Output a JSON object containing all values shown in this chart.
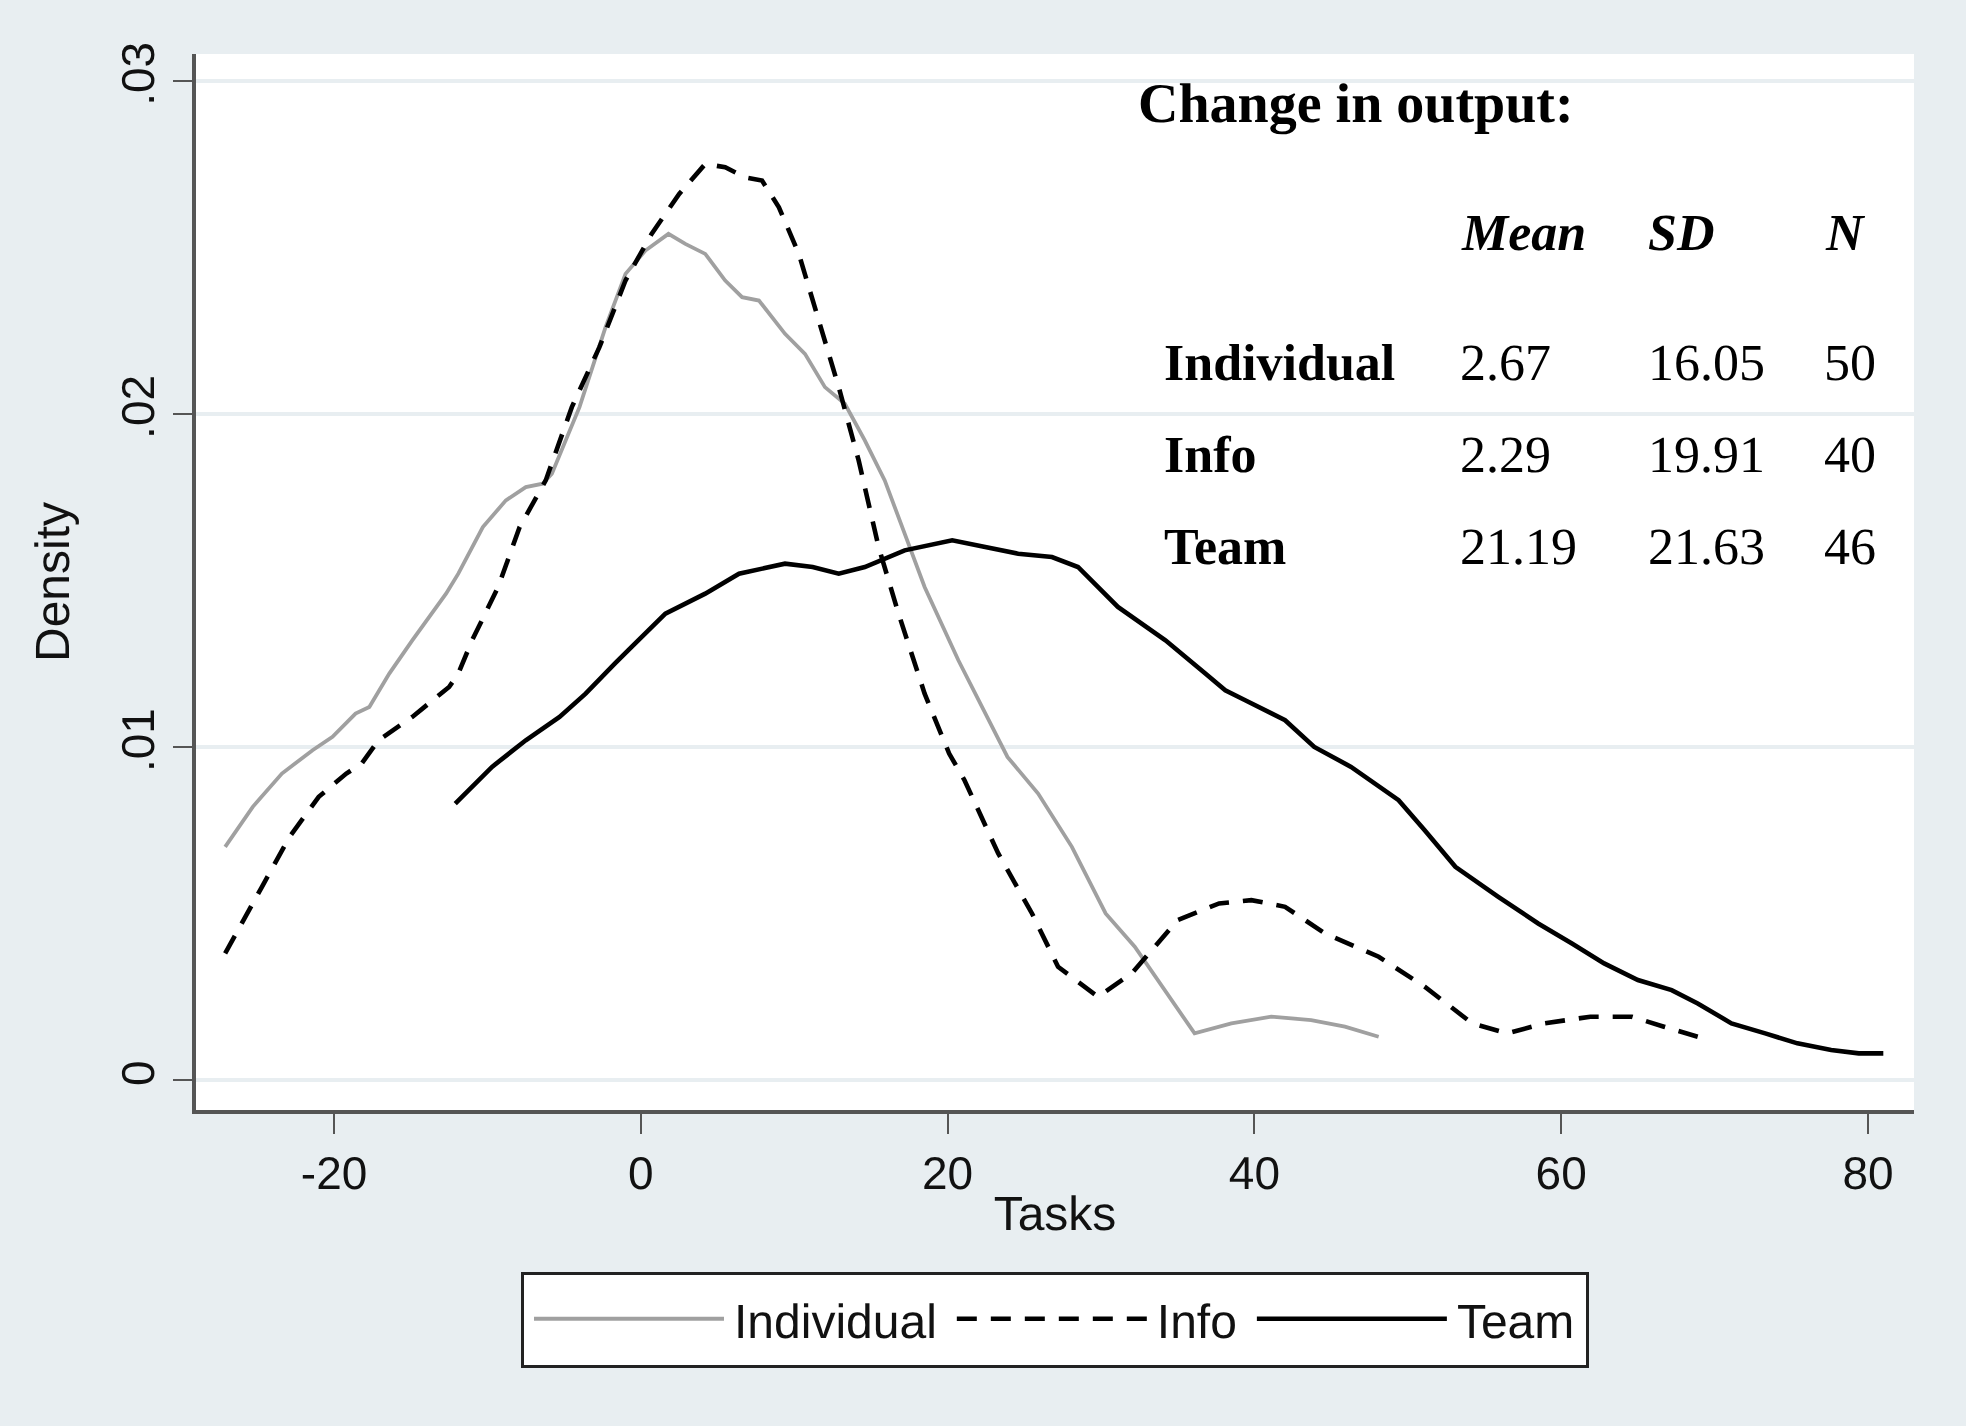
{
  "chart_data": {
    "type": "line",
    "xlabel": "Tasks",
    "ylabel": "Density",
    "annotations": [
      "Change in output:",
      "Mean",
      "SD",
      "N",
      "Individual",
      "2.67",
      "16.05",
      "50",
      "Info",
      "2.29",
      "19.91",
      "40",
      "Team",
      "21.19",
      "21.63",
      "46"
    ],
    "series": [
      {
        "name": "Individual",
        "color": "#a0a0a0",
        "line_style": "solid",
        "x": [
          -27.1,
          -25.3,
          -23.4,
          -21.4,
          -20.1,
          -18.6,
          -17.7,
          -16.4,
          -14.9,
          -12.7,
          -11.9,
          -10.3,
          -8.8,
          -7.5,
          -6.4,
          -5.8,
          -4.0,
          -2.3,
          -1.0,
          0.3,
          1.8,
          2.9,
          4.2,
          5.5,
          6.6,
          7.7,
          9.4,
          10.7,
          12.0,
          13.3,
          14.6,
          15.9,
          17.2,
          18.5,
          20.7,
          23.9,
          25.9,
          28.1,
          30.3,
          32.2,
          36.1,
          38.5,
          41.1,
          43.7,
          45.9,
          48.1
        ],
        "values": [
          0.007,
          0.0082,
          0.0092,
          0.0099,
          0.0103,
          0.011,
          0.0112,
          0.0122,
          0.0132,
          0.0146,
          0.0152,
          0.0166,
          0.0174,
          0.0178,
          0.0179,
          0.0182,
          0.0202,
          0.0226,
          0.0242,
          0.0249,
          0.0254,
          0.0251,
          0.0248,
          0.024,
          0.0235,
          0.0234,
          0.0224,
          0.0218,
          0.0208,
          0.0203,
          0.0192,
          0.018,
          0.0164,
          0.0148,
          0.0126,
          0.0097,
          0.0086,
          0.007,
          0.005,
          0.004,
          0.0014,
          0.0017,
          0.0019,
          0.0018,
          0.0016,
          0.0013
        ]
      },
      {
        "name": "Info",
        "color": "#000000",
        "line_style": "dashed",
        "x": [
          -27.1,
          -24.7,
          -22.9,
          -21.0,
          -19.2,
          -18.2,
          -17.1,
          -14.9,
          -12.5,
          -11.9,
          -11.0,
          -9.3,
          -7.9,
          -6.2,
          -4.5,
          -2.7,
          -1.0,
          0.7,
          2.5,
          4.2,
          5.5,
          6.8,
          7.9,
          9.0,
          10.3,
          11.6,
          12.9,
          14.2,
          15.5,
          16.8,
          18.5,
          20.1,
          21.1,
          23.3,
          25.5,
          27.2,
          29.8,
          32.0,
          35.0,
          37.7,
          39.8,
          42.0,
          44.6,
          48.1,
          51.1,
          54.2,
          56.5,
          58.9,
          61.9,
          64.6,
          66.7,
          68.9
        ],
        "values": [
          0.0038,
          0.0058,
          0.0073,
          0.0085,
          0.0092,
          0.0095,
          0.0102,
          0.0109,
          0.0118,
          0.0122,
          0.0132,
          0.0148,
          0.0166,
          0.018,
          0.0202,
          0.022,
          0.024,
          0.0254,
          0.0266,
          0.0275,
          0.0274,
          0.0271,
          0.027,
          0.0262,
          0.0248,
          0.0228,
          0.0208,
          0.0186,
          0.016,
          0.014,
          0.0116,
          0.0098,
          0.009,
          0.0068,
          0.005,
          0.0034,
          0.0025,
          0.0032,
          0.0048,
          0.0053,
          0.0054,
          0.0052,
          0.0044,
          0.0037,
          0.0028,
          0.0017,
          0.0014,
          0.0017,
          0.0019,
          0.0019,
          0.0016,
          0.0013
        ]
      },
      {
        "name": "Team",
        "color": "#000000",
        "line_style": "solid",
        "x": [
          -12.1,
          -9.7,
          -7.5,
          -5.3,
          -3.6,
          -1.7,
          -0.6,
          1.6,
          4.2,
          6.4,
          9.4,
          11.2,
          12.9,
          14.6,
          17.2,
          20.3,
          24.6,
          26.8,
          28.5,
          31.1,
          34.2,
          36.8,
          38.1,
          39.4,
          42.0,
          43.9,
          46.3,
          49.4,
          51.1,
          53.1,
          55.9,
          58.5,
          60.7,
          62.8,
          65.0,
          67.2,
          68.9,
          71.1,
          73.3,
          75.4,
          77.6,
          79.4,
          81.0
        ],
        "values": [
          0.0083,
          0.0094,
          0.0102,
          0.0109,
          0.0116,
          0.0125,
          0.013,
          0.014,
          0.0146,
          0.0152,
          0.0155,
          0.0154,
          0.0152,
          0.0154,
          0.0159,
          0.0162,
          0.0158,
          0.0157,
          0.0154,
          0.0142,
          0.0132,
          0.0122,
          0.0117,
          0.0114,
          0.0108,
          0.01,
          0.0094,
          0.0084,
          0.0075,
          0.0064,
          0.0055,
          0.0047,
          0.0041,
          0.0035,
          0.003,
          0.0027,
          0.0023,
          0.0017,
          0.0014,
          0.0011,
          0.0009,
          0.0008,
          0.0008
        ]
      }
    ],
    "xlim": [
      -29,
      83
    ],
    "ylim": [
      -0.0009,
      0.0308
    ],
    "xticks": [
      -20,
      0,
      20,
      40,
      60,
      80
    ],
    "yticks": [
      0,
      {
        "value": 0.01,
        "label": ".01"
      },
      {
        "value": 0.02,
        "label": ".02"
      },
      {
        "value": 0.03,
        "label": ".03"
      }
    ],
    "grid": "y",
    "legend": "bottom"
  }
}
